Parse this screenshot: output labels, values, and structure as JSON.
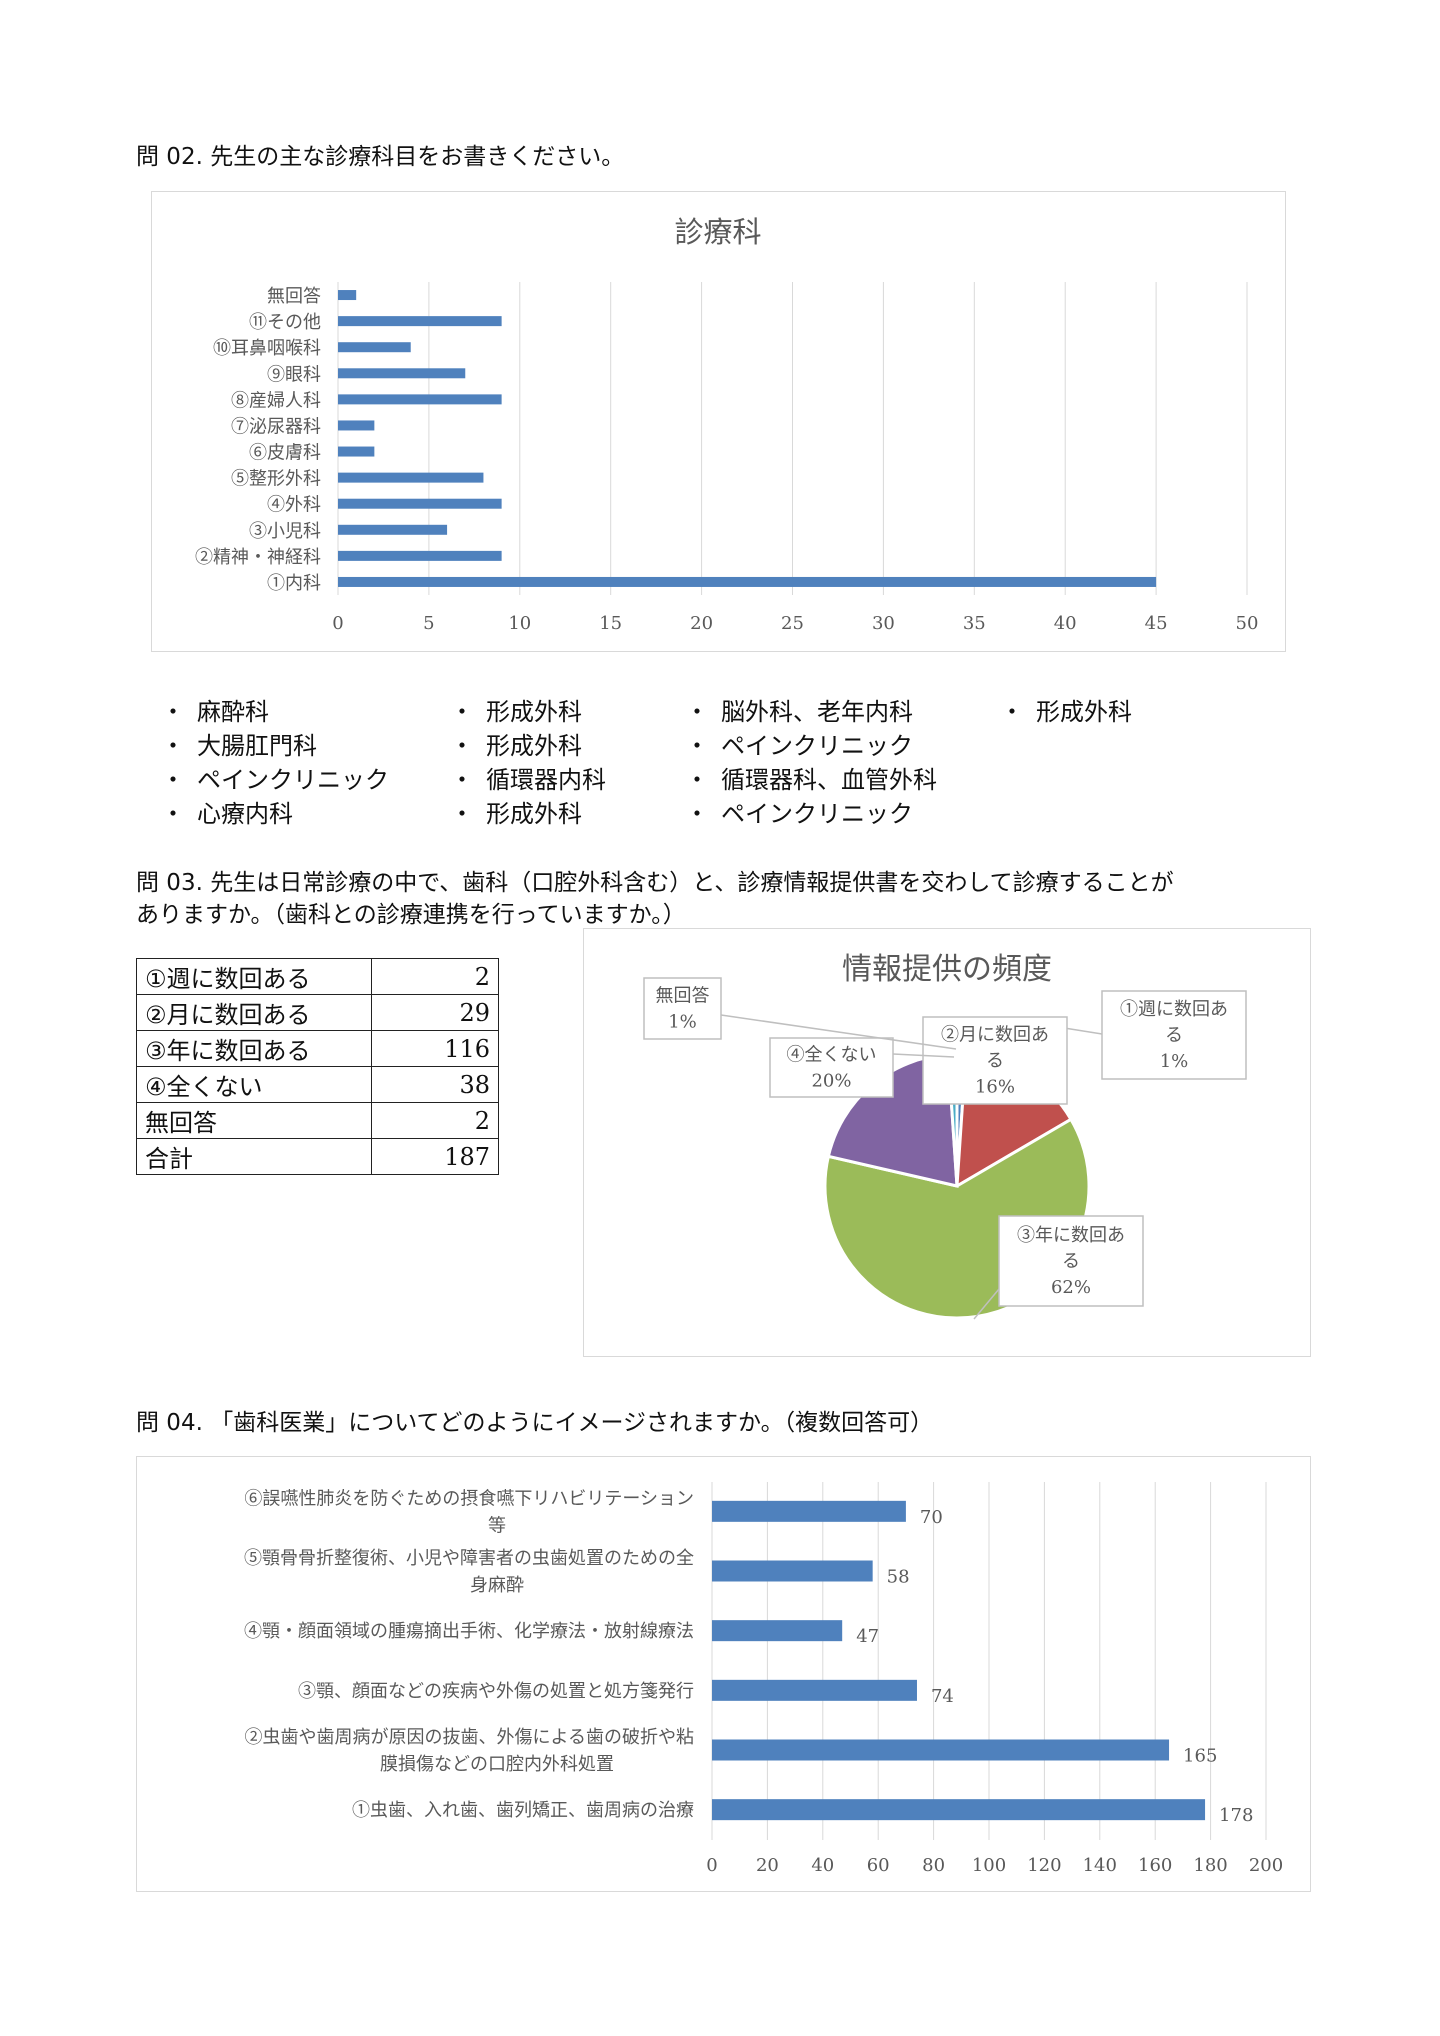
{
  "q02": {
    "title": "問 02.  先生の主な診療科目をお書きください。",
    "other_answers": [
      [
        "麻酔科",
        "大腸肛門科",
        "ペインクリニック",
        "心療内科"
      ],
      [
        "形成外科",
        "形成外科",
        "循環器内科",
        "形成外科"
      ],
      [
        "脳外科、老年内科",
        "ペインクリニック",
        "循環器科、血管外科",
        "ペインクリニック"
      ],
      [
        "形成外科"
      ]
    ],
    "bullet": "・"
  },
  "q03": {
    "title_line1": "問 03.  先生は日常診療の中で、歯科（口腔外科含む）と、診療情報提供書を交わして診療することが",
    "title_line2": "ありますか。（歯科との診療連携を行っていますか。）",
    "table": [
      {
        "label": "①週に数回ある",
        "value": "2"
      },
      {
        "label": "②月に数回ある",
        "value": "29"
      },
      {
        "label": "③年に数回ある",
        "value": "116"
      },
      {
        "label": "④全くない",
        "value": "38"
      },
      {
        "label": "無回答",
        "value": "2"
      },
      {
        "label": "合計",
        "value": "187"
      }
    ]
  },
  "q04": {
    "title": "問 04.  「歯科医業」についてどのようにイメージされますか。（複数回答可）"
  },
  "chart_data": [
    {
      "type": "bar",
      "orientation": "horizontal",
      "title": "診療科",
      "categories": [
        "①内科",
        "②精神・神経科",
        "③小児科",
        "④外科",
        "⑤整形外科",
        "⑥皮膚科",
        "⑦泌尿器科",
        "⑧産婦人科",
        "⑨眼科",
        "⑩耳鼻咽喉科",
        "⑪その他",
        "無回答"
      ],
      "values": [
        45,
        9,
        6,
        9,
        8,
        2,
        2,
        9,
        7,
        4,
        9,
        1
      ],
      "xlim": [
        0,
        50
      ],
      "xticks": [
        "0",
        "5",
        "10",
        "15",
        "20",
        "25",
        "30",
        "35",
        "40",
        "45",
        "50"
      ],
      "grid": true,
      "color": "#4f81bd"
    },
    {
      "type": "pie",
      "title": "情報提供の頻度",
      "slices": [
        {
          "label": "①週に数回ある",
          "value": 2,
          "pct": "1%",
          "color": "#4f81bd"
        },
        {
          "label": "②月に数回ある",
          "value": 29,
          "pct": "16%",
          "color": "#c0504d"
        },
        {
          "label": "③年に数回ある",
          "value": 116,
          "pct": "62%",
          "color": "#9bbb59"
        },
        {
          "label": "④全くない",
          "value": 38,
          "pct": "20%",
          "color": "#8064a2"
        },
        {
          "label": "無回答",
          "value": 2,
          "pct": "1%",
          "color": "#4bacc6"
        }
      ],
      "label_lines": [
        [
          "①週に数回あ",
          "る",
          "1%"
        ],
        [
          "②月に数回あ",
          "る",
          "16%"
        ],
        [
          "③年に数回あ",
          "る",
          "62%"
        ],
        [
          "④全くない",
          "20%"
        ],
        [
          "無回答",
          "1%"
        ]
      ]
    },
    {
      "type": "bar",
      "orientation": "horizontal",
      "title": "",
      "categories": [
        [
          "①虫歯、入れ歯、歯列矯正、歯周病の治療"
        ],
        [
          "②虫歯や歯周病が原因の抜歯、外傷による歯の破折や粘",
          "膜損傷などの口腔内外科処置"
        ],
        [
          "③顎、顔面などの疾病や外傷の処置と処方箋発行"
        ],
        [
          "④顎・顔面領域の腫瘍摘出手術、化学療法・放射線療法"
        ],
        [
          "⑤顎骨骨折整復術、小児や障害者の虫歯処置のための全",
          "身麻酔"
        ],
        [
          "⑥誤嚥性肺炎を防ぐための摂食嚥下リハビリテーション",
          "等"
        ]
      ],
      "values": [
        178,
        165,
        74,
        47,
        58,
        70
      ],
      "data_labels": [
        "178",
        "165",
        "74",
        "47",
        "58",
        "70"
      ],
      "xlim": [
        0,
        200
      ],
      "xticks": [
        "0",
        "20",
        "40",
        "60",
        "80",
        "100",
        "120",
        "140",
        "160",
        "180",
        "200"
      ],
      "grid": true,
      "color": "#4f81bd"
    }
  ]
}
